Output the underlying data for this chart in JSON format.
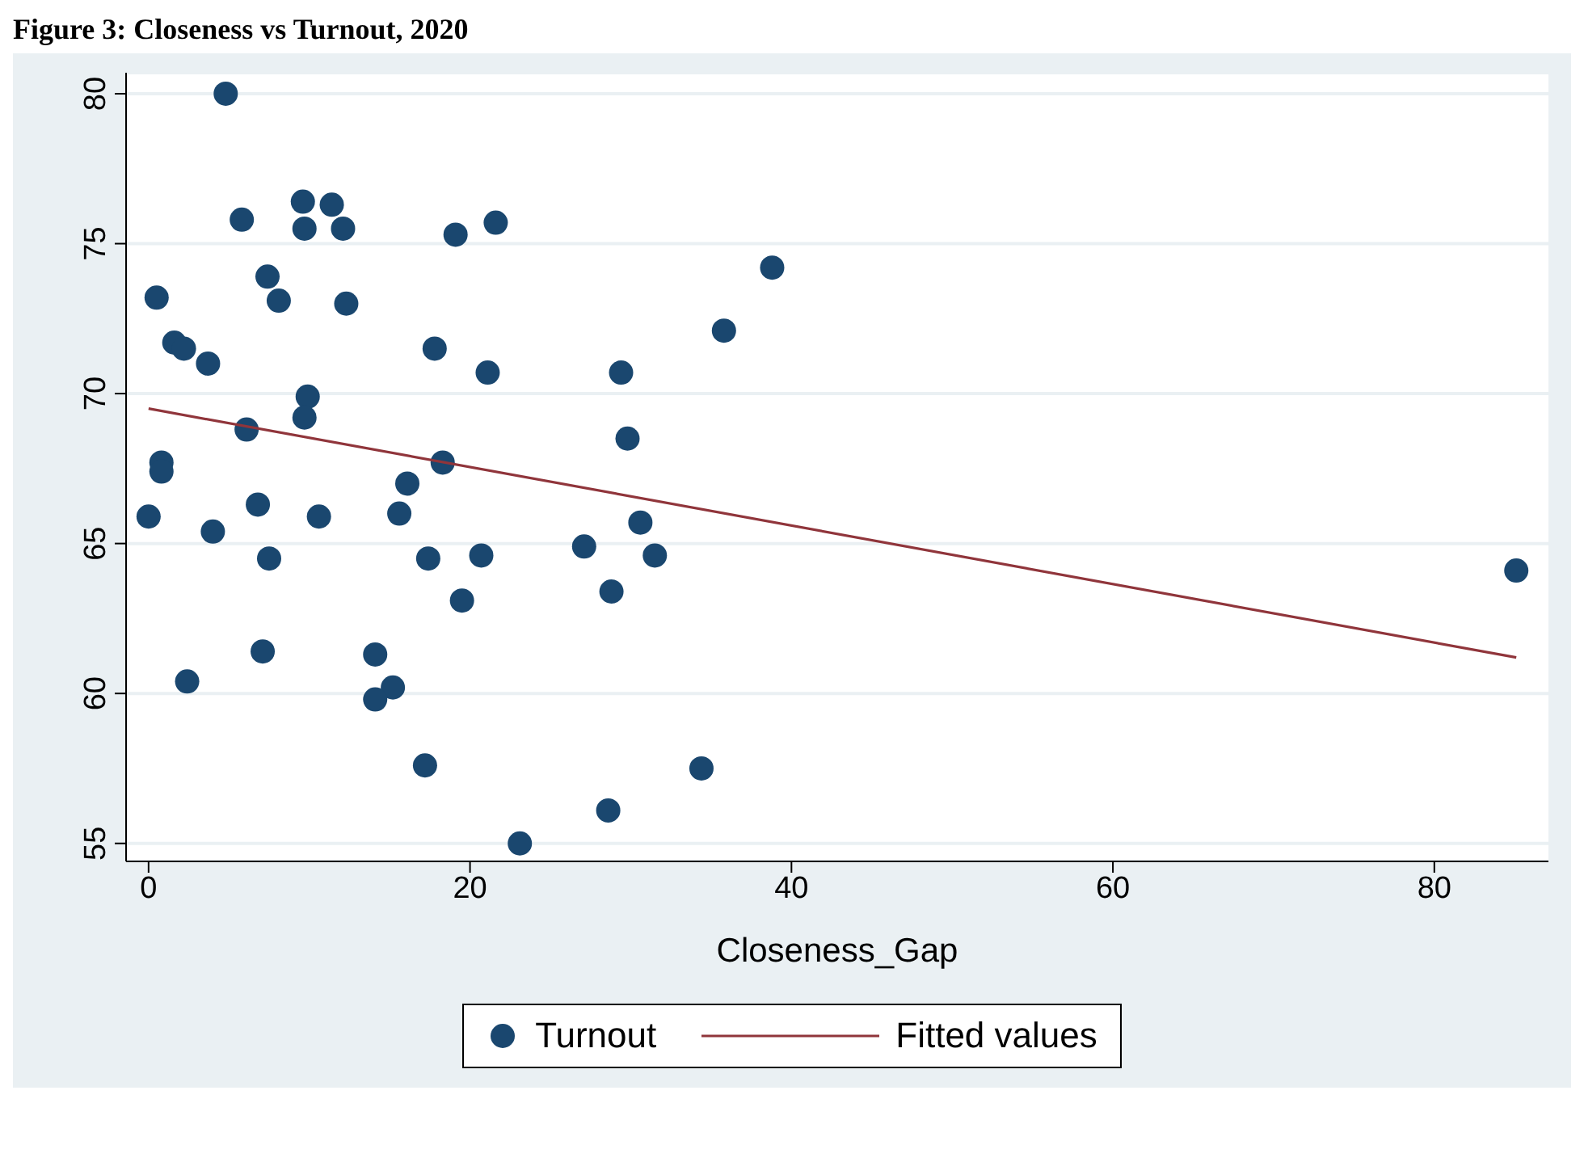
{
  "chart_data": {
    "type": "scatter",
    "title": "Figure 3: Closeness vs Turnout, 2020",
    "xlabel": "Closeness_Gap",
    "xlim": [
      -1.4,
      87.1
    ],
    "xticks": [
      0,
      20,
      40,
      60,
      80
    ],
    "ylim": [
      54.4,
      80.7
    ],
    "yticks": [
      55,
      60,
      65,
      70,
      75,
      80
    ],
    "grid": "y",
    "legend": "bottom",
    "marker": "circle",
    "series": [
      {
        "name": "Turnout",
        "color": "#1a476f",
        "x": [
          4.8,
          5.8,
          9.6,
          11.4,
          9.7,
          12.1,
          19.1,
          21.6,
          38.8,
          0.5,
          7.4,
          8.1,
          12.3,
          1.6,
          2.2,
          3.7,
          17.8,
          35.8,
          21.1,
          29.4,
          9.9,
          9.7,
          6.1,
          29.8,
          0.8,
          0.8,
          18.3,
          16.1,
          6.8,
          0,
          10.6,
          15.6,
          30.6,
          4.0,
          27.1,
          7.5,
          17.4,
          20.7,
          31.5,
          85.1,
          28.8,
          19.5,
          7.1,
          14.1,
          2.4,
          15.2,
          14.1,
          17.2,
          34.4,
          28.6,
          23.1
        ],
        "values": [
          80.0,
          75.8,
          76.4,
          76.3,
          75.5,
          75.5,
          75.3,
          75.7,
          74.2,
          73.2,
          73.9,
          73.1,
          73.0,
          71.7,
          71.5,
          71.0,
          71.5,
          72.1,
          70.7,
          70.7,
          69.9,
          69.2,
          68.8,
          68.5,
          67.7,
          67.4,
          67.7,
          67.0,
          66.3,
          65.9,
          65.9,
          66.0,
          65.7,
          65.4,
          64.9,
          64.5,
          64.5,
          64.6,
          64.6,
          64.1,
          63.4,
          63.1,
          61.4,
          61.3,
          60.4,
          60.2,
          59.8,
          57.6,
          57.5,
          56.1,
          55.0
        ]
      },
      {
        "name": "Fitted values",
        "type": "line",
        "color": "#90353b",
        "marker": "none",
        "x": [
          0,
          85.1
        ],
        "values": [
          69.5,
          61.2
        ]
      }
    ]
  }
}
